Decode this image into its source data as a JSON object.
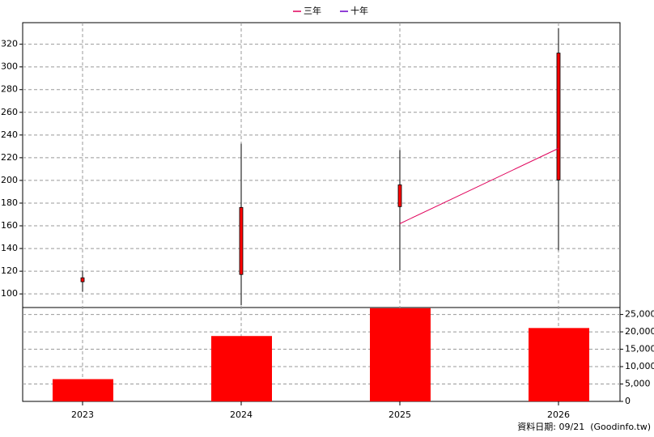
{
  "chart_data": {
    "type": "candlestick",
    "categories": [
      "2023",
      "2024",
      "2025",
      "2026"
    ],
    "open": [
      110.7,
      117.1,
      176.9,
      200.4
    ],
    "high": [
      120.6,
      232.4,
      226.7,
      334.2
    ],
    "low": [
      102,
      90,
      120.6,
      138.4
    ],
    "close": [
      114.2,
      176.2,
      196.1,
      312.2
    ],
    "candle_color": "#ff0000",
    "ylim": [
      88,
      339
    ],
    "yticks": [
      100,
      120,
      140,
      160,
      180,
      200,
      220,
      240,
      260,
      280,
      300,
      320
    ],
    "series": [
      {
        "name": "三年",
        "color": "#e0005a",
        "values": [
          null,
          null,
          161.9,
          228.2
        ]
      },
      {
        "name": "十年",
        "color": "#6a00c8",
        "values": [
          null,
          null,
          null,
          null
        ]
      }
    ],
    "volume": {
      "color": "#ff0000",
      "values": [
        6400,
        18800,
        26800,
        21100
      ]
    },
    "y2lim": [
      0,
      27000
    ],
    "y2ticks": [
      0,
      {
        "value": 5000,
        "label": "5,000"
      },
      {
        "value": 10000,
        "label": "10,000"
      },
      {
        "value": 15000,
        "label": "15,000"
      },
      {
        "value": 20000,
        "label": "20,000"
      },
      {
        "value": 25000,
        "label": "25,000"
      }
    ],
    "grid": true,
    "footer": "資料日期: 09/21  (Goodinfo.tw)"
  }
}
